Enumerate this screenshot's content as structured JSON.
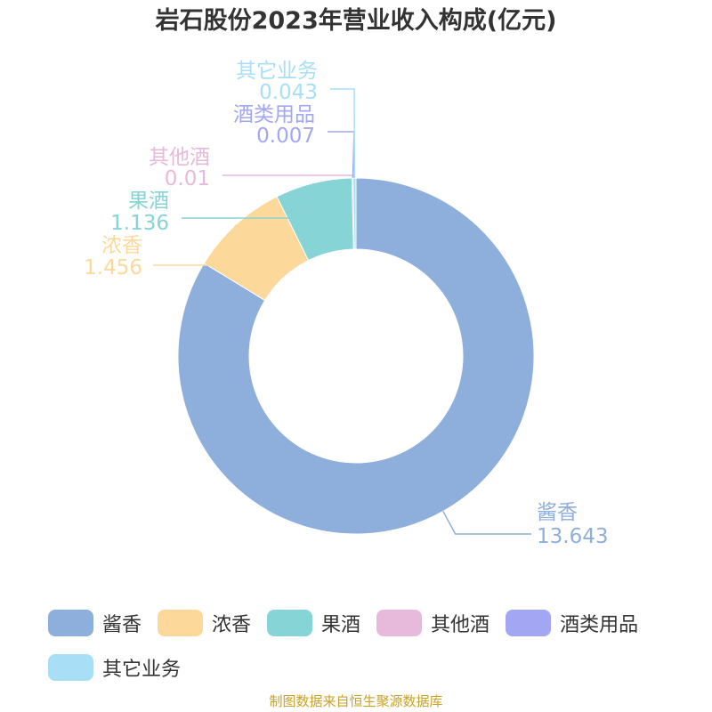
{
  "chart_data": {
    "type": "pie",
    "variant": "donut",
    "title": "岩石股份2023年营业收入构成(亿元)",
    "categories": [
      "酱香",
      "浓香",
      "果酒",
      "其他酒",
      "酒类用品",
      "其它业务"
    ],
    "values": [
      13.643,
      1.456,
      1.136,
      0.01,
      0.007,
      0.043
    ],
    "colors": [
      "#8eaedb",
      "#fdd89b",
      "#86d4d6",
      "#e7b9db",
      "#a3a6f2",
      "#a8dff7"
    ],
    "legend_position": "bottom"
  },
  "value_labels": [
    "13.643",
    "1.456",
    "1.136",
    "0.01",
    "0.007",
    "0.043"
  ],
  "source": "制图数据来自恒生聚源数据库"
}
